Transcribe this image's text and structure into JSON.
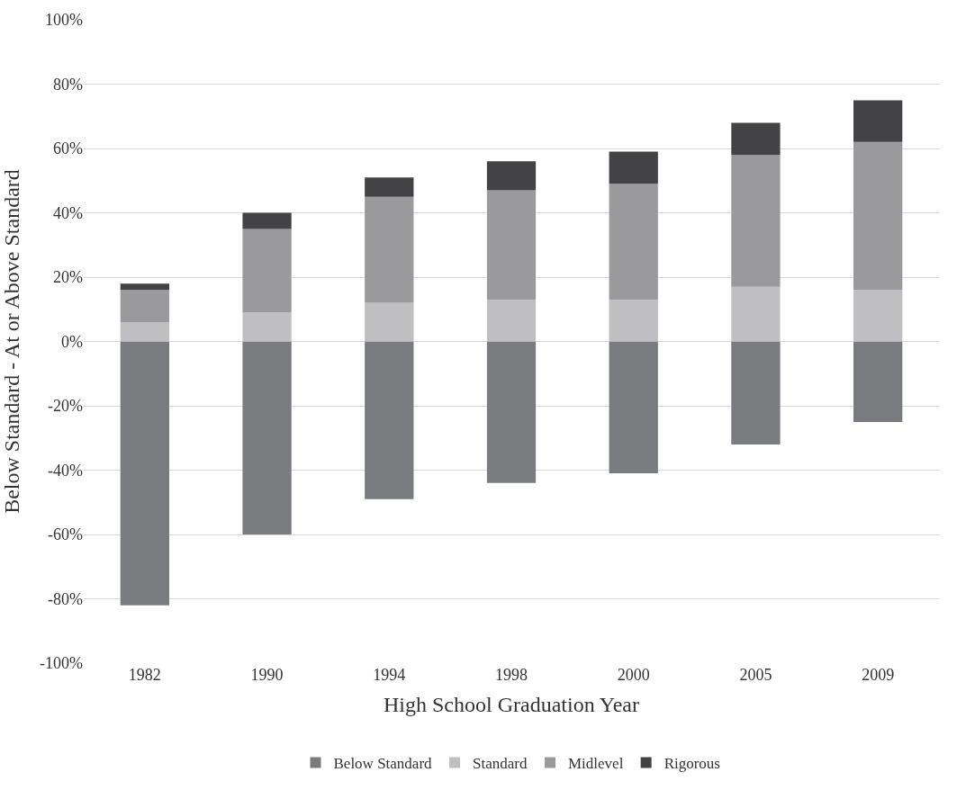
{
  "chart_data": {
    "type": "bar",
    "stacked": true,
    "xlabel": "High School Graduation Year",
    "ylabel": "Below Standard - At or Above Standard",
    "categories": [
      "1982",
      "1990",
      "1994",
      "1998",
      "2000",
      "2005",
      "2009"
    ],
    "series": [
      {
        "name": "Below Standard",
        "color": "#7a7b7f",
        "values": [
          -82,
          -60,
          -49,
          -44,
          -41,
          -32,
          -25
        ]
      },
      {
        "name": "Standard",
        "color": "#bfbfc1",
        "values": [
          6,
          9,
          12,
          13,
          13,
          17,
          16
        ]
      },
      {
        "name": "Midlevel",
        "color": "#9a9a9d",
        "values": [
          10,
          26,
          33,
          34,
          36,
          41,
          46
        ]
      },
      {
        "name": "Rigorous",
        "color": "#434345",
        "values": [
          2,
          5,
          6,
          9,
          10,
          10,
          13
        ]
      }
    ],
    "ylim": [
      -100,
      100
    ],
    "yticks": [
      {
        "value": -100,
        "label": "-100%"
      },
      {
        "value": -80,
        "label": "-80%"
      },
      {
        "value": -60,
        "label": "-60%"
      },
      {
        "value": -40,
        "label": "-40%"
      },
      {
        "value": -20,
        "label": "-20%"
      },
      {
        "value": 0,
        "label": "0%"
      },
      {
        "value": 20,
        "label": "20%"
      },
      {
        "value": 40,
        "label": "40%"
      },
      {
        "value": 60,
        "label": "60%"
      },
      {
        "value": 80,
        "label": "80%"
      },
      {
        "value": 100,
        "label": "100%"
      }
    ],
    "grid": "y",
    "legend": "bottom"
  }
}
